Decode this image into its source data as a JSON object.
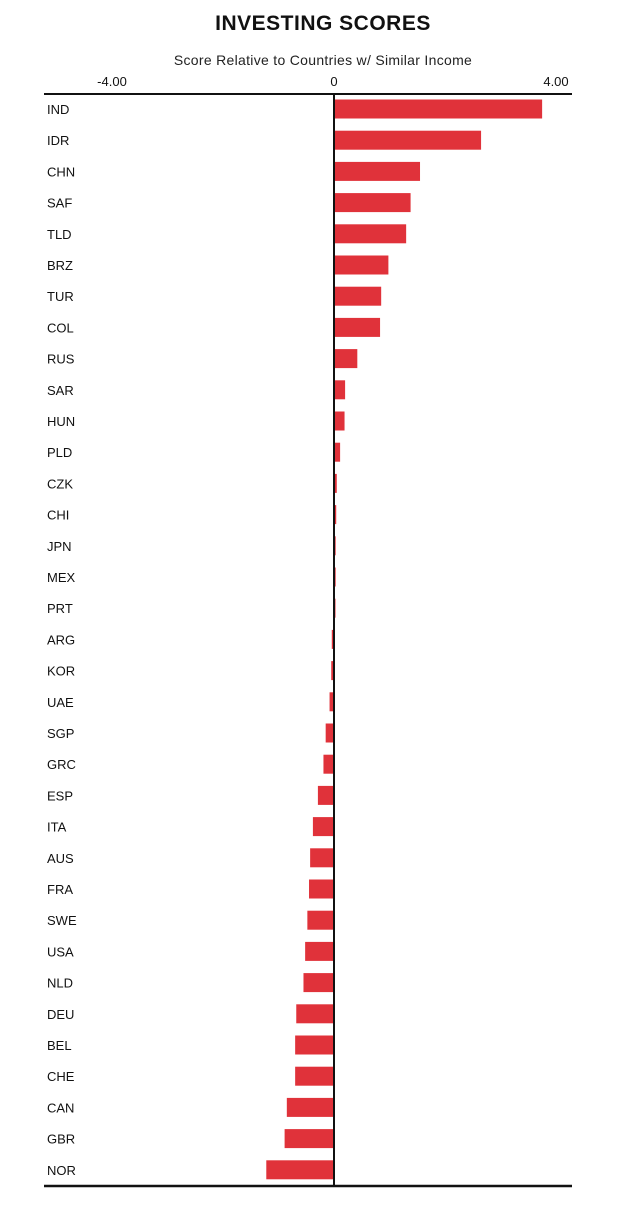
{
  "chart_data": {
    "type": "bar",
    "orientation": "horizontal",
    "title": "INVESTING SCORES",
    "xlabel": "Score Relative to Countries w/ Similar Income",
    "ylabel": "",
    "xlim": [
      -4.0,
      4.0
    ],
    "xticks": [
      {
        "value": -4.0,
        "label": "-4.00"
      },
      {
        "value": 0,
        "label": "0"
      },
      {
        "value": 4.0,
        "label": "4.00"
      }
    ],
    "grid": false,
    "bar_color": "#e0323a",
    "axis_color": "#111111",
    "categories": [
      "IND",
      "IDR",
      "CHN",
      "SAF",
      "TLD",
      "BRZ",
      "TUR",
      "COL",
      "RUS",
      "SAR",
      "HUN",
      "PLD",
      "CZK",
      "CHI",
      "JPN",
      "MEX",
      "PRT",
      "ARG",
      "KOR",
      "UAE",
      "SGP",
      "GRC",
      "ESP",
      "ITA",
      "AUS",
      "FRA",
      "SWE",
      "USA",
      "NLD",
      "DEU",
      "BEL",
      "CHE",
      "CAN",
      "GBR",
      "NOR"
    ],
    "values": [
      3.75,
      2.65,
      1.55,
      1.38,
      1.3,
      0.98,
      0.85,
      0.83,
      0.42,
      0.2,
      0.19,
      0.11,
      0.05,
      0.04,
      0.03,
      0.03,
      0.02,
      -0.04,
      -0.05,
      -0.08,
      -0.15,
      -0.19,
      -0.29,
      -0.38,
      -0.43,
      -0.45,
      -0.48,
      -0.52,
      -0.55,
      -0.68,
      -0.7,
      -0.7,
      -0.85,
      -0.89,
      -1.22
    ]
  }
}
